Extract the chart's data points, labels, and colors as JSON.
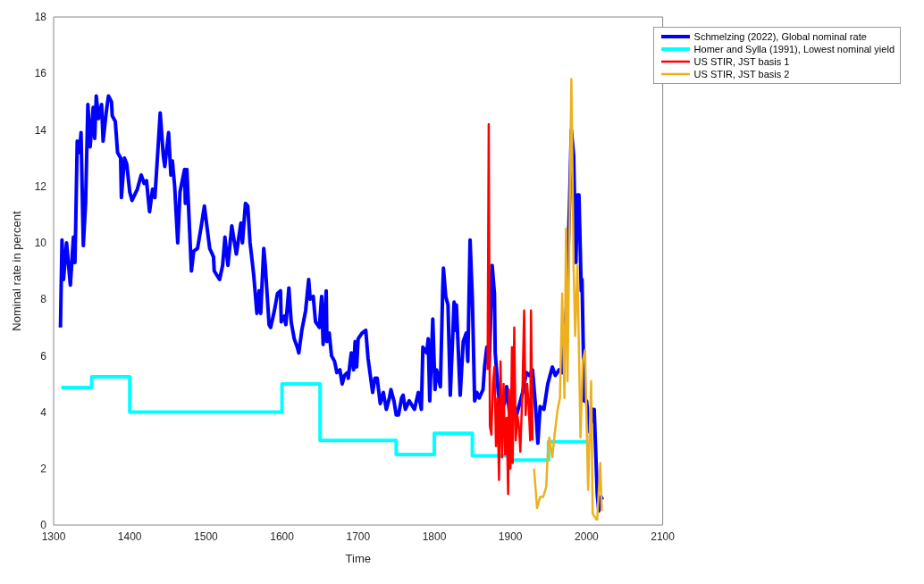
{
  "chart_data": {
    "type": "line",
    "xlabel": "Time",
    "ylabel": "Nominal rate in percent",
    "xlim": [
      1300,
      2100
    ],
    "xticks": [
      1300,
      1400,
      1500,
      1600,
      1700,
      1800,
      1900,
      2000,
      2100
    ],
    "ylim": [
      0,
      18
    ],
    "yticks": [
      0,
      2,
      4,
      6,
      8,
      10,
      12,
      14,
      16,
      18
    ],
    "grid": false,
    "legend": "top right",
    "marker": "none",
    "line_style": "solid",
    "series": [
      {
        "name": "Schmelzing (2022), Global nominal rate",
        "color": "#0000ff",
        "x": [
          1309,
          1311,
          1313,
          1317,
          1322,
          1326,
          1328,
          1329,
          1331,
          1334,
          1336,
          1339,
          1342,
          1345,
          1348,
          1352,
          1354,
          1356,
          1359,
          1363,
          1365,
          1369,
          1372,
          1376,
          1377,
          1381,
          1384,
          1388,
          1389,
          1393,
          1396,
          1400,
          1403,
          1410,
          1415,
          1419,
          1422,
          1426,
          1430,
          1433,
          1437,
          1440,
          1444,
          1446,
          1451,
          1454,
          1456,
          1459,
          1463,
          1466,
          1472,
          1473,
          1475,
          1481,
          1484,
          1489,
          1494,
          1498,
          1505,
          1510,
          1511,
          1518,
          1522,
          1525,
          1529,
          1534,
          1540,
          1546,
          1548,
          1552,
          1555,
          1558,
          1561,
          1563,
          1567,
          1570,
          1572,
          1576,
          1578,
          1583,
          1585,
          1590,
          1594,
          1598,
          1599,
          1603,
          1605,
          1609,
          1612,
          1616,
          1620,
          1622,
          1626,
          1631,
          1635,
          1637,
          1641,
          1644,
          1649,
          1652,
          1654,
          1658,
          1659,
          1662,
          1665,
          1669,
          1672,
          1676,
          1679,
          1682,
          1686,
          1687,
          1690,
          1691,
          1694,
          1696,
          1698,
          1700,
          1705,
          1710,
          1713,
          1719,
          1722,
          1725,
          1729,
          1733,
          1737,
          1741,
          1743,
          1747,
          1750,
          1753,
          1757,
          1759,
          1762,
          1767,
          1774,
          1779,
          1783,
          1785,
          1790,
          1792,
          1794,
          1798,
          1801,
          1803,
          1808,
          1811,
          1812,
          1815,
          1818,
          1821,
          1826,
          1827,
          1829,
          1834,
          1838,
          1842,
          1844,
          1847,
          1850,
          1853,
          1856,
          1859,
          1864,
          1866,
          1869,
          1872,
          1876,
          1879,
          1880,
          1884,
          1888,
          1892,
          1895,
          1899,
          1907,
          1916,
          1921,
          1925,
          1929,
          1933,
          1936,
          1939,
          1944,
          1949,
          1955,
          1959,
          1964,
          1968,
          1974,
          1978,
          1980,
          1983,
          1986,
          1988,
          1990,
          1993,
          1994,
          1997,
          2000,
          2004,
          2008,
          2010,
          2014,
          2016,
          2019,
          2021
        ],
        "values": [
          7.0,
          10.1,
          8.7,
          10.0,
          8.5,
          10.2,
          9.3,
          10.6,
          13.6,
          13.2,
          13.9,
          9.9,
          11.4,
          14.9,
          13.4,
          14.8,
          13.7,
          15.2,
          14.4,
          14.9,
          13.6,
          14.6,
          15.2,
          15.0,
          14.5,
          14.3,
          13.2,
          13.0,
          11.6,
          13.0,
          12.8,
          11.8,
          11.5,
          11.9,
          12.4,
          12.1,
          12.2,
          11.1,
          11.9,
          11.6,
          13.3,
          14.6,
          13.1,
          12.7,
          13.9,
          12.4,
          12.9,
          12.0,
          10.0,
          11.8,
          12.6,
          11.4,
          12.6,
          9.0,
          9.7,
          9.8,
          10.6,
          11.3,
          9.8,
          9.5,
          9.0,
          8.7,
          9.2,
          10.2,
          9.2,
          10.6,
          9.6,
          10.7,
          10.0,
          11.4,
          11.3,
          10.0,
          9.3,
          8.8,
          7.5,
          8.3,
          7.5,
          9.8,
          9.2,
          7.1,
          7.0,
          7.6,
          8.2,
          8.3,
          7.2,
          7.4,
          7.1,
          8.4,
          7.2,
          6.6,
          6.3,
          6.1,
          6.9,
          7.6,
          8.7,
          8.0,
          8.1,
          7.2,
          7.0,
          8.1,
          6.4,
          8.3,
          6.5,
          6.8,
          6.0,
          5.8,
          5.4,
          5.5,
          5.0,
          5.3,
          5.4,
          5.2,
          5.9,
          6.1,
          5.5,
          6.5,
          5.6,
          6.6,
          6.8,
          6.9,
          5.9,
          4.7,
          5.2,
          5.2,
          4.3,
          4.7,
          4.1,
          4.5,
          4.8,
          4.4,
          3.9,
          3.9,
          4.5,
          4.6,
          4.1,
          4.4,
          4.1,
          4.7,
          4.1,
          6.3,
          6.1,
          6.6,
          4.4,
          7.3,
          4.8,
          5.5,
          4.9,
          8.3,
          9.1,
          8.1,
          7.8,
          4.6,
          7.9,
          6.9,
          7.8,
          4.6,
          6.5,
          6.8,
          5.8,
          10.1,
          8.0,
          4.4,
          4.7,
          4.5,
          4.8,
          5.6,
          6.3,
          5.6,
          9.2,
          8.2,
          6.1,
          4.7,
          4.1,
          4.3,
          4.9,
          3.9,
          3.8,
          4.7,
          5.4,
          5.3,
          5.5,
          4.2,
          2.9,
          4.2,
          4.1,
          5.0,
          5.6,
          5.3,
          5.5,
          5.4,
          7.9,
          11.8,
          14.0,
          13.1,
          9.3,
          11.7,
          11.7,
          8.3,
          8.7,
          4.4,
          4.4,
          3.3,
          4.1,
          4.1,
          1.1,
          0.5,
          1.0,
          0.9
        ]
      },
      {
        "name": "Homer and Sylla (1991), Lowest nominal yield",
        "type": "step",
        "color": "#00ffff",
        "x": [
          1310,
          1350,
          1400,
          1600,
          1650,
          1750,
          1800,
          1850,
          1900,
          1950,
          2000
        ],
        "values": [
          4.87,
          5.25,
          4.0,
          5.0,
          3.0,
          2.5,
          3.25,
          2.45,
          2.3,
          2.95,
          2.95
        ]
      },
      {
        "name": "US STIR, JST basis 1",
        "color": "#ff0000",
        "x": [
          1870,
          1871.5,
          1873,
          1875,
          1877,
          1879,
          1881,
          1883,
          1885,
          1887,
          1889,
          1891,
          1893,
          1895,
          1897,
          1898,
          1900,
          1902,
          1903,
          1905,
          1907,
          1909,
          1911,
          1913,
          1916,
          1918,
          1920,
          1922,
          1924,
          1926,
          1927,
          1929
        ],
        "values": [
          5.5,
          14.2,
          3.5,
          3.2,
          5.0,
          5.6,
          2.8,
          4.5,
          1.6,
          5.8,
          2.4,
          5.0,
          2.5,
          3.8,
          1.1,
          4.8,
          2.0,
          6.3,
          2.2,
          7.0,
          3.0,
          3.9,
          3.5,
          2.6,
          5.0,
          7.6,
          3.9,
          5.0,
          4.2,
          3.0,
          7.6,
          3.0
        ]
      },
      {
        "name": "US STIR, JST basis 2",
        "color": "#edb120",
        "x": [
          1931,
          1935,
          1939,
          1943,
          1947,
          1949,
          1951,
          1955,
          1958,
          1962,
          1965,
          1968,
          1971,
          1973,
          1975,
          1980,
          1983,
          1985,
          1988,
          1992,
          1995,
          1998,
          2002,
          2006,
          2008,
          2013,
          2014,
          2018,
          2020
        ],
        "values": [
          2.0,
          0.6,
          1.0,
          1.0,
          1.35,
          2.5,
          3.1,
          2.4,
          3.2,
          4.1,
          4.5,
          8.2,
          4.5,
          10.5,
          5.1,
          15.8,
          9.1,
          6.7,
          9.2,
          3.1,
          5.8,
          6.2,
          1.25,
          5.1,
          0.4,
          0.2,
          0.2,
          2.2,
          0.5
        ]
      }
    ]
  }
}
